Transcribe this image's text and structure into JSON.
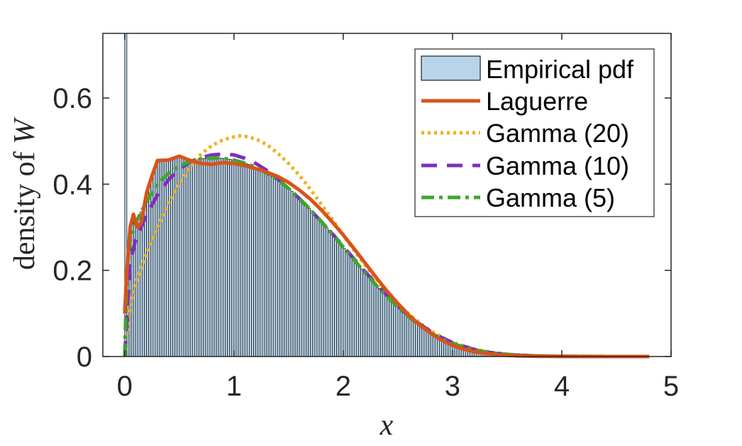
{
  "chart_data": {
    "type": "bar",
    "title": "",
    "xlabel": "x",
    "ylabel_prefix": "density of ",
    "ylabel_var": "W",
    "xlim": [
      -0.2,
      5
    ],
    "ylim": [
      0,
      0.75
    ],
    "xticks": [
      0,
      1,
      2,
      3,
      4,
      5
    ],
    "yticks": [
      0,
      0.2,
      0.4,
      0.6
    ],
    "xtick_labels": [
      "0",
      "1",
      "2",
      "3",
      "4",
      "5"
    ],
    "ytick_labels": [
      "0",
      "0.2",
      "0.4",
      "0.6"
    ],
    "legend_placement": "top-right",
    "grid": false,
    "histogram": {
      "name": "Empirical pdf",
      "bin_width": 0.02,
      "spike": {
        "x": 0.01,
        "value": 0.75
      },
      "color": "#b8d4ea",
      "edge_color": "#222222"
    },
    "series": [
      {
        "name": "Laguerre",
        "color": "#d95319",
        "dash": "solid",
        "x": [
          0.0,
          0.02,
          0.05,
          0.08,
          0.1,
          0.12,
          0.15,
          0.2,
          0.25,
          0.3,
          0.4,
          0.5,
          0.6,
          0.7,
          0.8,
          0.9,
          1.0,
          1.1,
          1.2,
          1.3,
          1.4,
          1.5,
          1.6,
          1.7,
          1.8,
          1.9,
          2.0,
          2.1,
          2.2,
          2.3,
          2.4,
          2.5,
          2.6,
          2.7,
          2.8,
          2.9,
          3.0,
          3.1,
          3.2,
          3.4,
          3.6,
          3.8,
          4.0,
          4.2,
          4.5,
          4.8
        ],
        "y": [
          0.1,
          0.2,
          0.3,
          0.33,
          0.31,
          0.3,
          0.31,
          0.38,
          0.42,
          0.455,
          0.456,
          0.465,
          0.455,
          0.448,
          0.446,
          0.45,
          0.448,
          0.443,
          0.436,
          0.428,
          0.418,
          0.404,
          0.386,
          0.365,
          0.34,
          0.312,
          0.282,
          0.25,
          0.217,
          0.184,
          0.152,
          0.123,
          0.096,
          0.073,
          0.054,
          0.038,
          0.026,
          0.017,
          0.011,
          0.004,
          0.0015,
          0.0005,
          0.0002,
          0.0001,
          0.0,
          0.0
        ]
      },
      {
        "name": "Gamma (20)",
        "color": "#edb120",
        "dash": "dotted",
        "x": [
          0.0,
          0.05,
          0.1,
          0.2,
          0.3,
          0.4,
          0.5,
          0.6,
          0.7,
          0.8,
          0.9,
          1.0,
          1.05,
          1.1,
          1.2,
          1.3,
          1.4,
          1.5,
          1.6,
          1.7,
          1.8,
          1.9,
          2.0,
          2.1,
          2.2,
          2.3,
          2.4,
          2.5,
          2.6,
          2.7,
          2.8,
          2.9,
          3.0,
          3.2,
          3.4,
          3.6,
          3.8,
          4.0,
          4.4,
          4.8
        ],
        "y": [
          0.0,
          0.12,
          0.17,
          0.24,
          0.3,
          0.355,
          0.4,
          0.44,
          0.47,
          0.49,
          0.503,
          0.51,
          0.512,
          0.511,
          0.505,
          0.492,
          0.472,
          0.448,
          0.42,
          0.388,
          0.353,
          0.318,
          0.282,
          0.246,
          0.212,
          0.18,
          0.15,
          0.123,
          0.099,
          0.078,
          0.06,
          0.045,
          0.033,
          0.017,
          0.008,
          0.0035,
          0.0014,
          0.0005,
          0.0001,
          0.0
        ]
      },
      {
        "name": "Gamma (10)",
        "color": "#7e2fbe",
        "dash": "dashed",
        "x": [
          0.0,
          0.05,
          0.1,
          0.2,
          0.3,
          0.4,
          0.5,
          0.6,
          0.7,
          0.8,
          0.9,
          1.0,
          1.1,
          1.2,
          1.3,
          1.4,
          1.5,
          1.6,
          1.7,
          1.8,
          1.9,
          2.0,
          2.1,
          2.2,
          2.3,
          2.4,
          2.5,
          2.6,
          2.7,
          2.8,
          2.9,
          3.0,
          3.2,
          3.4,
          3.6,
          3.8,
          4.0,
          4.4,
          4.8
        ],
        "y": [
          0.0,
          0.22,
          0.27,
          0.33,
          0.375,
          0.41,
          0.435,
          0.452,
          0.462,
          0.468,
          0.47,
          0.468,
          0.46,
          0.448,
          0.432,
          0.412,
          0.39,
          0.366,
          0.34,
          0.313,
          0.285,
          0.256,
          0.226,
          0.197,
          0.169,
          0.142,
          0.117,
          0.095,
          0.075,
          0.058,
          0.044,
          0.032,
          0.016,
          0.007,
          0.003,
          0.0012,
          0.0004,
          0.0001,
          0.0
        ]
      },
      {
        "name": "Gamma (5)",
        "color": "#3fa62e",
        "dash": "dashdot",
        "x": [
          0.0,
          0.02,
          0.05,
          0.1,
          0.2,
          0.3,
          0.4,
          0.5,
          0.6,
          0.7,
          0.8,
          0.9,
          1.0,
          1.1,
          1.2,
          1.3,
          1.4,
          1.5,
          1.6,
          1.7,
          1.8,
          1.9,
          2.0,
          2.1,
          2.2,
          2.3,
          2.4,
          2.5,
          2.6,
          2.7,
          2.8,
          2.9,
          3.0,
          3.2,
          3.4,
          3.6,
          3.8,
          4.0,
          4.4,
          4.8
        ],
        "y": [
          0.0,
          0.2,
          0.27,
          0.31,
          0.36,
          0.4,
          0.425,
          0.442,
          0.453,
          0.459,
          0.461,
          0.46,
          0.456,
          0.449,
          0.439,
          0.426,
          0.41,
          0.39,
          0.367,
          0.341,
          0.313,
          0.284,
          0.254,
          0.224,
          0.194,
          0.166,
          0.139,
          0.114,
          0.092,
          0.072,
          0.055,
          0.041,
          0.03,
          0.015,
          0.007,
          0.003,
          0.0012,
          0.0004,
          0.0001,
          0.0
        ]
      }
    ]
  }
}
